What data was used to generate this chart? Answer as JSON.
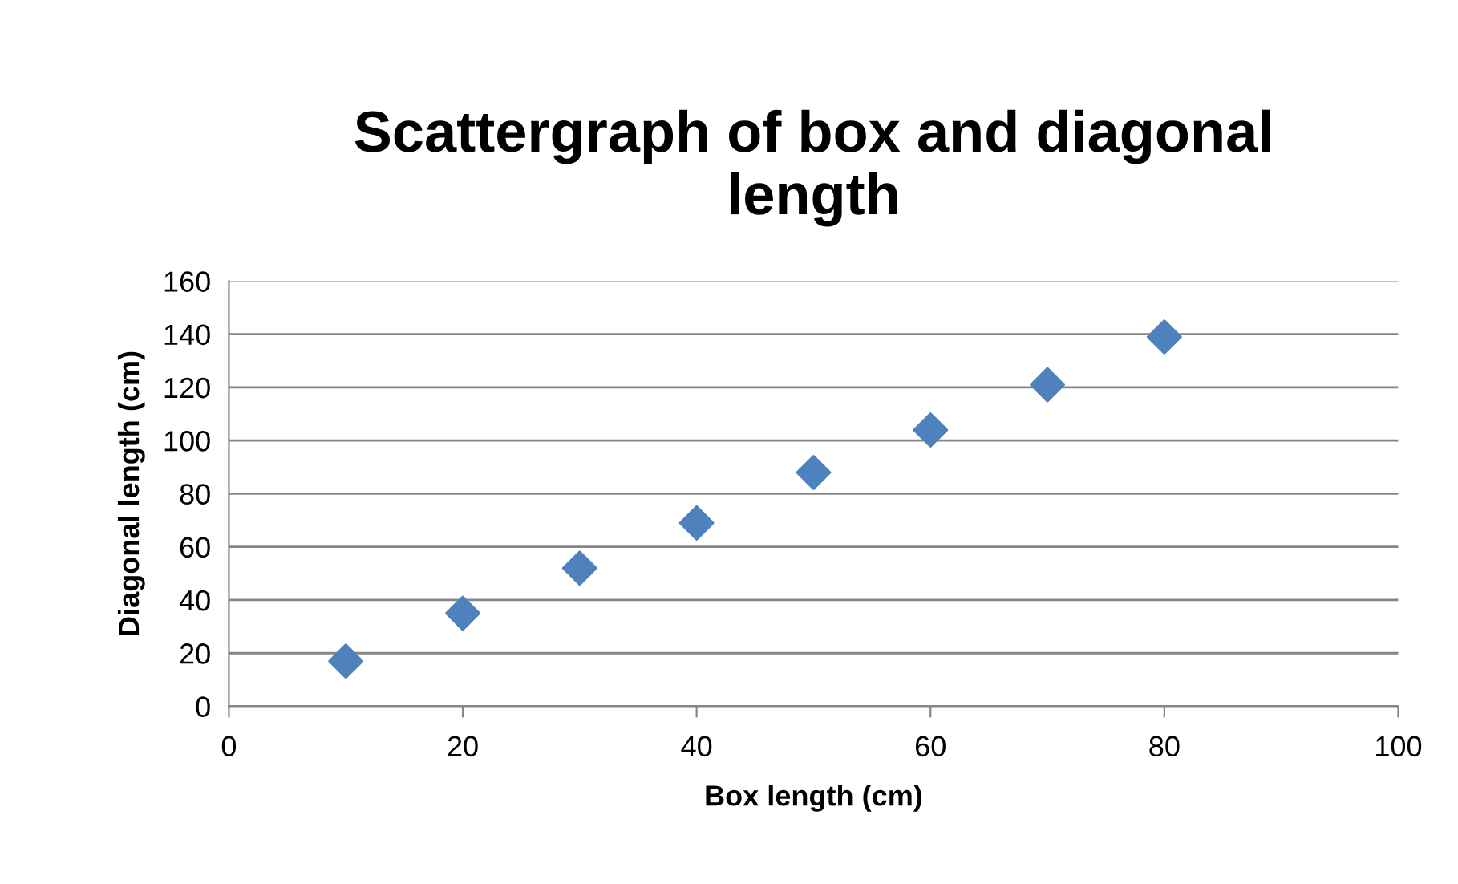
{
  "chart_data": {
    "type": "scatter",
    "title": "Scattergraph of box and diagonal\nlength",
    "xlabel": "Box length (cm)",
    "ylabel": "Diagonal length (cm)",
    "x": [
      10,
      20,
      30,
      40,
      50,
      60,
      70,
      80
    ],
    "series": [
      {
        "color": "#4f81bd",
        "values": [
          17,
          35,
          52,
          69,
          88,
          104,
          121,
          139
        ]
      }
    ],
    "xlim": [
      0,
      100
    ],
    "xticks": [
      0,
      20,
      40,
      60,
      80,
      100
    ],
    "ylim": [
      0,
      160
    ],
    "yticks": [
      0,
      20,
      40,
      60,
      80,
      100,
      120,
      140,
      160
    ],
    "grid": "y",
    "marker": "diamond",
    "legend": false
  }
}
